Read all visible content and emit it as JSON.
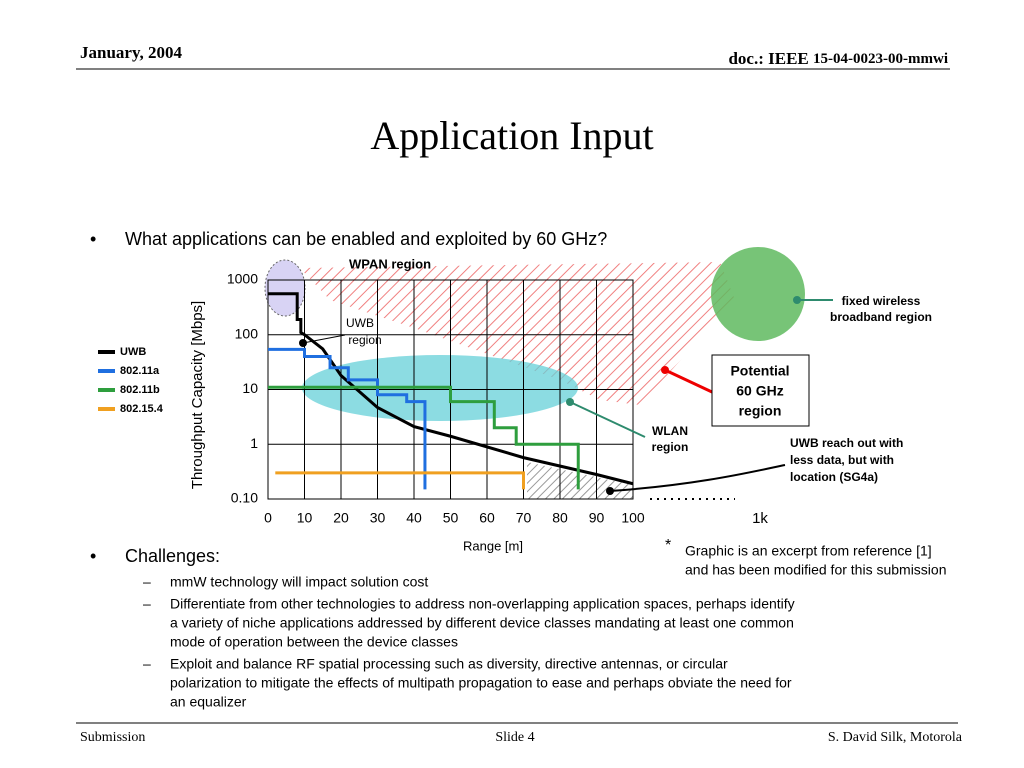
{
  "header": {
    "date": "January, 2004",
    "doc_prefix": "doc.: IEEE",
    "doc_number": "15-04-0023-00-mmwi"
  },
  "title": "Application Input",
  "bullets": [
    {
      "text": "What applications can be enabled and exploited by 60 GHz?"
    },
    {
      "text": "Challenges:",
      "sub": [
        [
          "mmW technology will impact solution cost"
        ],
        [
          "Differentiate from other technologies to address non-overlapping application spaces, perhaps identify",
          "a variety of niche applications addressed by different device classes mandating at least one common",
          "mode of operation between the device classes"
        ],
        [
          "Exploit and balance RF spatial processing such as diversity, directive antennas, or circular",
          "polarization to mitigate the effects of multipath propagation to ease and perhaps obviate the need for",
          "an equalizer"
        ]
      ]
    }
  ],
  "footnote": {
    "mark": "*",
    "lines": [
      "Graphic is an excerpt from reference [1]",
      "and has been modified for this submission"
    ]
  },
  "footer": {
    "left": "Submission",
    "center": "Slide 4",
    "right": "S. David Silk, Motorola"
  },
  "chart_data": {
    "type": "line",
    "x_label": "Range [m]",
    "y_label": "Throughput Capacity [Mbps]",
    "yscale": "log",
    "xlim": [
      0,
      100
    ],
    "ylim": [
      0.1,
      1000
    ],
    "xticks": [
      0,
      10,
      20,
      30,
      40,
      50,
      60,
      70,
      80,
      90,
      100
    ],
    "yticks": [
      {
        "value": 0.1,
        "label": "0.10"
      },
      1,
      10,
      100,
      1000
    ],
    "grid": true,
    "series": [
      {
        "name": "UWB",
        "color": "#000000",
        "x": [
          0,
          8,
          8,
          9,
          9,
          10,
          15,
          20,
          30,
          40,
          50,
          70,
          90,
          100
        ],
        "values": [
          560,
          560,
          190,
          190,
          110,
          100,
          55,
          18,
          4.7,
          2.1,
          1.4,
          0.57,
          0.28,
          0.19
        ]
      },
      {
        "name": "802.11a",
        "color": "#1f6fe0",
        "x": [
          0,
          10,
          10,
          17,
          17,
          22,
          22,
          30,
          30,
          38,
          38,
          43,
          43
        ],
        "values": [
          54,
          54,
          40,
          40,
          25,
          25,
          15,
          15,
          8,
          8,
          6,
          6,
          0.15
        ]
      },
      {
        "name": "802.11b",
        "color": "#2e9e3e",
        "x": [
          0,
          50,
          50,
          62,
          62,
          68,
          68,
          85,
          85
        ],
        "values": [
          11,
          11,
          6,
          6,
          2,
          2,
          1,
          1,
          0.15
        ]
      },
      {
        "name": "802.15.4",
        "color": "#f0a020",
        "x": [
          2,
          70,
          70
        ],
        "values": [
          0.3,
          0.3,
          0.15
        ]
      }
    ],
    "annotations": [
      [
        "WPAN region"
      ],
      [
        "UWB",
        "region"
      ],
      [
        "fixed wireless",
        "broadband region"
      ],
      [
        "Potential",
        "60 GHz",
        "region"
      ],
      [
        "WLAN",
        "region"
      ],
      [
        "UWB reach out with",
        "less data, but with",
        "location (SG4a)"
      ],
      [
        "1k"
      ]
    ]
  }
}
